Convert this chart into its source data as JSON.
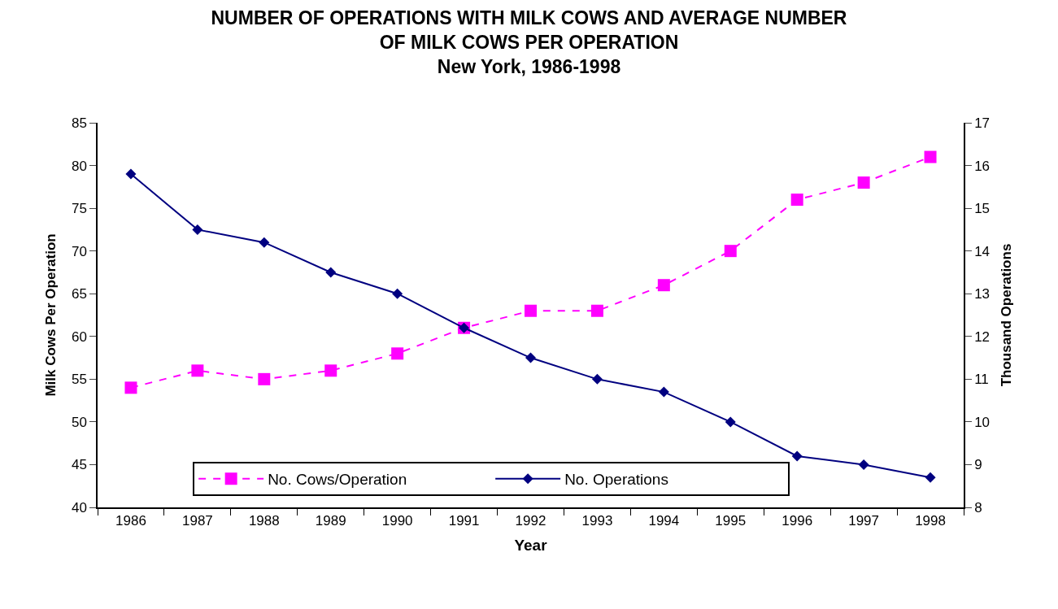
{
  "chart_data": {
    "type": "line",
    "title": "NUMBER OF OPERATIONS WITH MILK COWS AND AVERAGE NUMBER\nOF MILK COWS PER OPERATION",
    "subtitle": "New York, 1986-1998",
    "xlabel": "Year",
    "ylabel": "Milk Cows Per Operation",
    "y2label": "Thousand Operations",
    "categories": [
      "1986",
      "1987",
      "1988",
      "1989",
      "1990",
      "1991",
      "1992",
      "1993",
      "1994",
      "1995",
      "1996",
      "1997",
      "1998"
    ],
    "series": [
      {
        "name": "No. Cows/Operation",
        "color": "#ff00ff",
        "marker": "square",
        "line_style": "dashed",
        "values": [
          54,
          56,
          55,
          56,
          58,
          61,
          63,
          63,
          66,
          70,
          76,
          78,
          81
        ]
      },
      {
        "name": "No. Operations",
        "color": "#000080",
        "marker": "diamond",
        "line_style": "solid",
        "axis": "y2",
        "values": [
          15.8,
          14.5,
          14.2,
          13.5,
          13.0,
          12.2,
          11.5,
          11.0,
          10.7,
          10.0,
          9.2,
          9.0,
          8.7
        ]
      }
    ],
    "ylim": [
      40,
      85
    ],
    "yticks": [
      40,
      45,
      50,
      55,
      60,
      65,
      70,
      75,
      80,
      85
    ],
    "y2lim": [
      8,
      17
    ],
    "y2ticks": [
      8,
      9,
      10,
      11,
      12,
      13,
      14,
      15,
      16,
      17
    ],
    "legend": "bottom left"
  }
}
